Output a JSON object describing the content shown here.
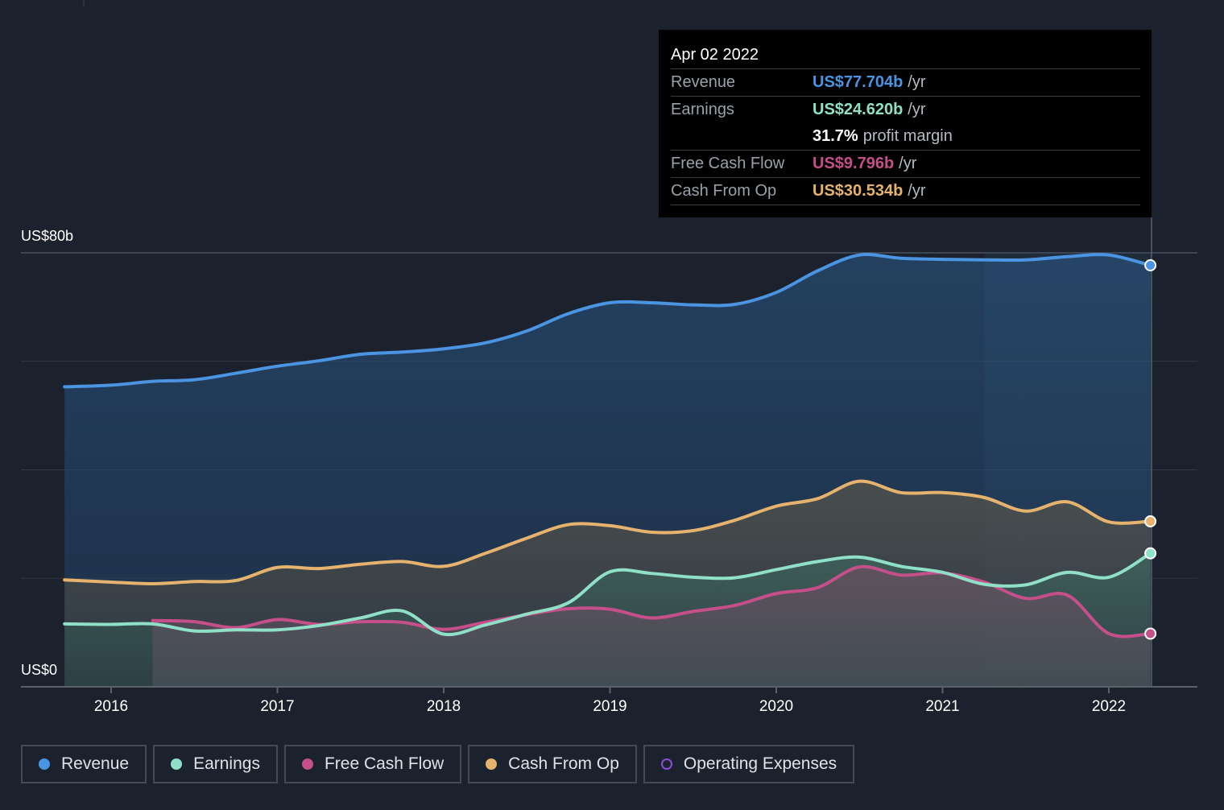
{
  "chart_data": {
    "type": "area",
    "x_ticks": [
      "2016",
      "2017",
      "2018",
      "2019",
      "2020",
      "2021",
      "2022"
    ],
    "y_labels": [
      "US$80b",
      "US$0"
    ],
    "ylim": [
      0,
      80
    ],
    "grid": true,
    "series": [
      {
        "name": "Revenue",
        "color": "#4a94e2",
        "x": [
          2015.72,
          2016.0,
          2016.25,
          2016.5,
          2016.75,
          2017.0,
          2017.25,
          2017.5,
          2017.75,
          2018.0,
          2018.25,
          2018.5,
          2018.75,
          2019.0,
          2019.25,
          2019.5,
          2019.75,
          2020.0,
          2020.25,
          2020.5,
          2020.75,
          2021.0,
          2021.25,
          2021.5,
          2021.75,
          2022.0,
          2022.25
        ],
        "values": [
          55.3,
          55.6,
          56.3,
          56.6,
          57.8,
          59.1,
          60.1,
          61.3,
          61.7,
          62.3,
          63.4,
          65.6,
          68.8,
          70.8,
          70.8,
          70.4,
          70.5,
          72.7,
          76.7,
          79.6,
          79.0,
          78.8,
          78.7,
          78.7,
          79.3,
          79.6,
          77.7
        ]
      },
      {
        "name": "Earnings",
        "color": "#8fe0c7",
        "x": [
          2015.72,
          2016.0,
          2016.25,
          2016.5,
          2016.75,
          2017.0,
          2017.25,
          2017.5,
          2017.75,
          2018.0,
          2018.25,
          2018.5,
          2018.75,
          2019.0,
          2019.25,
          2019.5,
          2019.75,
          2020.0,
          2020.25,
          2020.5,
          2020.75,
          2021.0,
          2021.25,
          2021.5,
          2021.75,
          2022.0,
          2022.25
        ],
        "values": [
          11.6,
          11.5,
          11.6,
          10.3,
          10.5,
          10.5,
          11.3,
          12.7,
          14.0,
          9.7,
          11.4,
          13.4,
          15.5,
          21.2,
          20.9,
          20.2,
          20.1,
          21.6,
          23.1,
          23.9,
          22.2,
          21.1,
          18.9,
          18.8,
          21.1,
          20.2,
          24.6
        ]
      },
      {
        "name": "Free Cash Flow",
        "color": "#c54f8a",
        "x": [
          2016.25,
          2016.5,
          2016.75,
          2017.0,
          2017.25,
          2017.5,
          2017.75,
          2018.0,
          2018.25,
          2018.5,
          2018.75,
          2019.0,
          2019.25,
          2019.5,
          2019.75,
          2020.0,
          2020.25,
          2020.5,
          2020.75,
          2021.0,
          2021.25,
          2021.5,
          2021.75,
          2022.0,
          2022.25
        ],
        "values": [
          12.2,
          12.0,
          10.9,
          12.4,
          11.5,
          12.0,
          11.9,
          10.6,
          11.9,
          13.3,
          14.4,
          14.3,
          12.7,
          13.9,
          15.0,
          17.2,
          18.3,
          22.1,
          20.6,
          21.0,
          19.3,
          16.3,
          16.9,
          9.8,
          9.8
        ]
      },
      {
        "name": "Cash From Op",
        "color": "#e5b36e",
        "x": [
          2015.72,
          2016.0,
          2016.25,
          2016.5,
          2016.75,
          2017.0,
          2017.25,
          2017.5,
          2017.75,
          2018.0,
          2018.25,
          2018.5,
          2018.75,
          2019.0,
          2019.25,
          2019.5,
          2019.75,
          2020.0,
          2020.25,
          2020.5,
          2020.75,
          2021.0,
          2021.25,
          2021.5,
          2021.75,
          2022.0,
          2022.25
        ],
        "values": [
          19.7,
          19.3,
          19.0,
          19.4,
          19.6,
          22.0,
          21.8,
          22.6,
          23.1,
          22.2,
          24.6,
          27.4,
          29.9,
          29.7,
          28.5,
          28.8,
          30.7,
          33.3,
          34.7,
          37.9,
          35.8,
          35.8,
          34.9,
          32.4,
          34.1,
          30.4,
          30.5
        ]
      },
      {
        "name": "Operating Expenses",
        "color": "#8a4fd6",
        "x": [],
        "values": []
      }
    ]
  },
  "tooltip": {
    "date": "Apr 02 2022",
    "revenue_label": "Revenue",
    "revenue_value": "US$77.704b",
    "earnings_label": "Earnings",
    "earnings_value": "US$24.620b",
    "margin_value": "31.7%",
    "margin_text": "profit margin",
    "fcf_label": "Free Cash Flow",
    "fcf_value": "US$9.796b",
    "cfo_label": "Cash From Op",
    "cfo_value": "US$30.534b",
    "unit": "/yr"
  },
  "legend": {
    "revenue": "Revenue",
    "earnings": "Earnings",
    "fcf": "Free Cash Flow",
    "cfo": "Cash From Op",
    "opex": "Operating Expenses"
  }
}
